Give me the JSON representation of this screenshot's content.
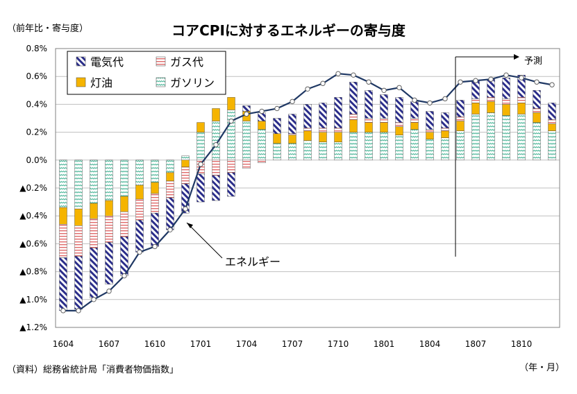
{
  "chart_data": {
    "type": "bar",
    "title": "コアCPIに対するエネルギーの寄与度",
    "unit_label": "（前年比・寄与度）",
    "source": "（資料）総務省統計局「消費者物価指数」",
    "xlabel": "（年・月）",
    "ylim": [
      -1.2,
      0.8
    ],
    "y_ticks": [
      0.8,
      0.6,
      0.4,
      0.2,
      0.0,
      -0.2,
      -0.4,
      -0.6,
      -0.8,
      -1.0,
      -1.2
    ],
    "y_tick_labels": [
      "0.8%",
      "0.6%",
      "0.4%",
      "0.2%",
      "0.0%",
      "▲0.2%",
      "▲0.4%",
      "▲0.6%",
      "▲0.8%",
      "▲1.0%",
      "▲1.2%"
    ],
    "x_tick_labels": [
      "1604",
      "1607",
      "1610",
      "1701",
      "1704",
      "1707",
      "1710",
      "1801",
      "1804",
      "1807",
      "1810"
    ],
    "grid": true,
    "legend_position": "top-left",
    "colors": {
      "denki_stripe": "#2b2e8a",
      "gas_stripe": "#e06a6a",
      "toyu": "#f5b400",
      "gasoline_stripe": "#4fb79a",
      "line": "#1f3864"
    },
    "categories": [
      "1604",
      "1605",
      "1606",
      "1607",
      "1608",
      "1609",
      "1610",
      "1611",
      "1612",
      "1701",
      "1702",
      "1703",
      "1704",
      "1705",
      "1706",
      "1707",
      "1708",
      "1709",
      "1710",
      "1711",
      "1712",
      "1801",
      "1802",
      "1803",
      "1804",
      "1805",
      "1806",
      "1807",
      "1808",
      "1809",
      "1810",
      "1811",
      "1812"
    ],
    "series": [
      {
        "name": "電気代",
        "key": "denki",
        "values": [
          -0.38,
          -0.38,
          -0.36,
          -0.3,
          -0.28,
          -0.23,
          -0.24,
          -0.23,
          -0.21,
          -0.2,
          -0.18,
          -0.17,
          0.04,
          0.06,
          0.11,
          0.14,
          0.17,
          0.18,
          0.22,
          0.23,
          0.2,
          0.17,
          0.18,
          0.12,
          0.13,
          0.11,
          0.12,
          0.13,
          0.13,
          0.15,
          0.16,
          0.13,
          0.12
        ]
      },
      {
        "name": "ガス代",
        "key": "gas",
        "values": [
          -0.24,
          -0.22,
          -0.21,
          -0.19,
          -0.18,
          -0.15,
          -0.14,
          -0.12,
          -0.12,
          -0.1,
          -0.11,
          -0.09,
          -0.06,
          -0.02,
          0.0,
          0.01,
          0.02,
          0.03,
          0.03,
          0.04,
          0.03,
          0.03,
          0.03,
          0.03,
          0.02,
          0.02,
          0.03,
          0.03,
          0.03,
          0.04,
          0.04,
          0.03,
          0.03
        ]
      },
      {
        "name": "灯油",
        "key": "toyu",
        "values": [
          -0.12,
          -0.12,
          -0.11,
          -0.11,
          -0.11,
          -0.1,
          -0.08,
          -0.06,
          -0.05,
          0.07,
          0.09,
          0.09,
          0.07,
          0.06,
          0.07,
          0.06,
          0.07,
          0.07,
          0.07,
          0.09,
          0.07,
          0.07,
          0.06,
          0.05,
          0.05,
          0.05,
          0.07,
          0.08,
          0.08,
          0.08,
          0.08,
          0.07,
          0.05
        ]
      },
      {
        "name": "ガソリン",
        "key": "gasoline",
        "values": [
          -0.34,
          -0.35,
          -0.31,
          -0.29,
          -0.26,
          -0.18,
          -0.16,
          -0.09,
          0.03,
          0.2,
          0.28,
          0.36,
          0.28,
          0.22,
          0.12,
          0.12,
          0.14,
          0.13,
          0.13,
          0.2,
          0.2,
          0.2,
          0.18,
          0.22,
          0.15,
          0.16,
          0.21,
          0.33,
          0.34,
          0.32,
          0.33,
          0.27,
          0.21
        ]
      }
    ],
    "line_series": {
      "name": "エネルギー",
      "values": [
        -1.08,
        -1.08,
        -1.0,
        -0.94,
        -0.83,
        -0.66,
        -0.62,
        -0.5,
        -0.35,
        -0.03,
        0.11,
        0.28,
        0.33,
        0.35,
        0.37,
        0.42,
        0.51,
        0.55,
        0.62,
        0.61,
        0.56,
        0.5,
        0.52,
        0.43,
        0.41,
        0.44,
        0.56,
        0.57,
        0.58,
        0.61,
        0.59,
        0.56,
        0.54
      ]
    },
    "annotations": [
      {
        "text": "予測",
        "from_category": "1806"
      },
      {
        "text": "エネルギー",
        "points_to_category": "1612"
      }
    ]
  }
}
